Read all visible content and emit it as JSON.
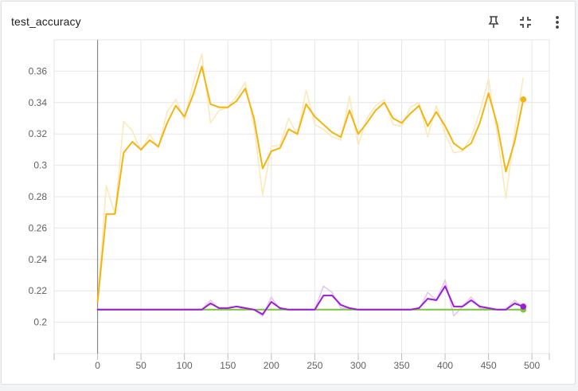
{
  "card": {
    "title": "test_accuracy"
  },
  "toolbar": {
    "pin_icon": "pin-icon",
    "fit_icon": "fit-to-data-icon",
    "more_icon": "more-vert-icon"
  },
  "colors": {
    "orange": "#f2b40f",
    "orange_raw": "#fbe7b4",
    "purple": "#9e1bd8",
    "purple_raw": "#e5bff3",
    "green": "#7cc63f",
    "grid": "#e6e6e6",
    "zero_axis": "#8a8a8a"
  },
  "chart_data": {
    "type": "line",
    "title": "",
    "xlabel": "",
    "ylabel": "",
    "xlim": [
      -50,
      520
    ],
    "ylim": [
      0.18,
      0.38
    ],
    "x_ticks": [
      0,
      50,
      100,
      150,
      200,
      250,
      300,
      350,
      400,
      450,
      500
    ],
    "x_tick_labels": [
      "0",
      "50",
      "100",
      "150",
      "200",
      "250",
      "300",
      "350",
      "400",
      "450",
      "500"
    ],
    "y_ticks": [
      0.2,
      0.22,
      0.24,
      0.26,
      0.28,
      0.3,
      0.32,
      0.34,
      0.36
    ],
    "y_tick_labels": [
      "0.2",
      "0.22",
      "0.24",
      "0.26",
      "0.28",
      "0.3",
      "0.32",
      "0.34",
      "0.36"
    ],
    "grid": true,
    "series": [
      {
        "color": "#f2b40f",
        "x": [
          0,
          10,
          20,
          30,
          40,
          50,
          60,
          70,
          80,
          90,
          100,
          110,
          120,
          130,
          140,
          150,
          160,
          170,
          180,
          190,
          200,
          210,
          220,
          230,
          240,
          250,
          260,
          270,
          280,
          290,
          300,
          310,
          320,
          330,
          340,
          350,
          360,
          370,
          380,
          390,
          400,
          410,
          420,
          430,
          440,
          450,
          460,
          470,
          480,
          490
        ],
        "values": [
          0.213,
          0.269,
          0.269,
          0.308,
          0.315,
          0.31,
          0.316,
          0.312,
          0.327,
          0.338,
          0.331,
          0.345,
          0.363,
          0.339,
          0.337,
          0.337,
          0.341,
          0.349,
          0.33,
          0.298,
          0.309,
          0.311,
          0.323,
          0.32,
          0.339,
          0.331,
          0.326,
          0.321,
          0.318,
          0.335,
          0.32,
          0.327,
          0.335,
          0.34,
          0.33,
          0.327,
          0.333,
          0.338,
          0.325,
          0.334,
          0.325,
          0.314,
          0.31,
          0.314,
          0.327,
          0.346,
          0.326,
          0.296,
          0.315,
          0.342
        ],
        "raw_values": [
          0.213,
          0.287,
          0.269,
          0.328,
          0.322,
          0.309,
          0.32,
          0.311,
          0.334,
          0.342,
          0.329,
          0.352,
          0.371,
          0.327,
          0.335,
          0.337,
          0.344,
          0.353,
          0.325,
          0.281,
          0.312,
          0.313,
          0.33,
          0.319,
          0.348,
          0.326,
          0.323,
          0.318,
          0.316,
          0.344,
          0.313,
          0.33,
          0.338,
          0.342,
          0.326,
          0.325,
          0.337,
          0.34,
          0.318,
          0.338,
          0.32,
          0.308,
          0.309,
          0.318,
          0.334,
          0.355,
          0.32,
          0.279,
          0.322,
          0.356
        ]
      },
      {
        "color": "#7cc63f",
        "x": [
          0,
          490
        ],
        "values": [
          0.208,
          0.208
        ],
        "raw_values": [
          0.208,
          0.208
        ]
      },
      {
        "color": "#9e1bd8",
        "x": [
          0,
          10,
          20,
          30,
          40,
          50,
          60,
          70,
          80,
          90,
          100,
          110,
          120,
          130,
          140,
          150,
          160,
          170,
          180,
          190,
          200,
          210,
          220,
          230,
          240,
          250,
          260,
          270,
          280,
          290,
          300,
          310,
          320,
          330,
          340,
          350,
          360,
          370,
          380,
          390,
          400,
          410,
          420,
          430,
          440,
          450,
          460,
          470,
          480,
          490
        ],
        "values": [
          0.208,
          0.208,
          0.208,
          0.208,
          0.208,
          0.208,
          0.208,
          0.208,
          0.208,
          0.208,
          0.208,
          0.208,
          0.208,
          0.212,
          0.209,
          0.209,
          0.21,
          0.209,
          0.208,
          0.205,
          0.213,
          0.209,
          0.208,
          0.208,
          0.208,
          0.208,
          0.217,
          0.217,
          0.211,
          0.209,
          0.208,
          0.208,
          0.208,
          0.208,
          0.208,
          0.208,
          0.208,
          0.209,
          0.215,
          0.214,
          0.223,
          0.21,
          0.21,
          0.214,
          0.21,
          0.209,
          0.208,
          0.208,
          0.212,
          0.21
        ],
        "raw_values": [
          0.208,
          0.208,
          0.208,
          0.208,
          0.208,
          0.208,
          0.208,
          0.208,
          0.208,
          0.208,
          0.208,
          0.208,
          0.208,
          0.214,
          0.208,
          0.209,
          0.21,
          0.208,
          0.208,
          0.204,
          0.216,
          0.208,
          0.208,
          0.208,
          0.208,
          0.208,
          0.223,
          0.219,
          0.209,
          0.209,
          0.208,
          0.208,
          0.208,
          0.208,
          0.208,
          0.208,
          0.208,
          0.208,
          0.219,
          0.214,
          0.227,
          0.204,
          0.21,
          0.216,
          0.209,
          0.208,
          0.208,
          0.208,
          0.214,
          0.209
        ]
      }
    ]
  }
}
